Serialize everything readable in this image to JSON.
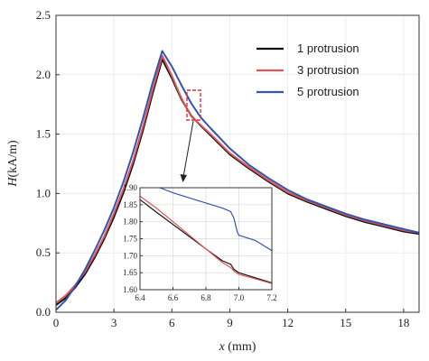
{
  "chart_data": {
    "type": "line",
    "xlabel_italic": "x",
    "xlabel_rest": " (mm)",
    "ylabel_italic": "H",
    "ylabel_rest": "(kA/m)",
    "xlim": [
      0,
      18.8
    ],
    "ylim": [
      0,
      2.5
    ],
    "xticks": [
      0,
      3,
      6,
      9,
      12,
      15,
      18
    ],
    "yticks": [
      0.0,
      0.5,
      1.0,
      1.5,
      2.0,
      2.5
    ],
    "ytick_labels": [
      "0.0",
      "0.5",
      "1.0",
      "1.5",
      "2.0",
      "2.5"
    ],
    "legend_position": "top-right",
    "series": [
      {
        "name": "1 protrusion",
        "color": "#111111",
        "x": [
          0.0,
          0.5,
          1.0,
          1.5,
          2.0,
          2.5,
          3.0,
          3.5,
          4.0,
          4.5,
          5.0,
          5.5,
          6.0,
          6.5,
          7.0,
          7.5,
          8.0,
          9.0,
          10.0,
          11.0,
          12.0,
          13.0,
          14.0,
          15.0,
          16.0,
          17.0,
          18.0,
          18.8
        ],
        "y": [
          0.06,
          0.12,
          0.21,
          0.32,
          0.46,
          0.62,
          0.8,
          1.01,
          1.25,
          1.53,
          1.84,
          2.13,
          1.97,
          1.79,
          1.655,
          1.57,
          1.49,
          1.33,
          1.21,
          1.1,
          1.0,
          0.93,
          0.87,
          0.81,
          0.76,
          0.72,
          0.68,
          0.66
        ]
      },
      {
        "name": "3 protrusion",
        "color": "#e05555",
        "x": [
          0.0,
          0.5,
          1.0,
          1.5,
          2.0,
          2.5,
          3.0,
          3.5,
          4.0,
          4.5,
          5.0,
          5.5,
          6.0,
          6.5,
          7.0,
          7.5,
          8.0,
          9.0,
          10.0,
          11.0,
          12.0,
          13.0,
          14.0,
          15.0,
          16.0,
          17.0,
          18.0,
          18.8
        ],
        "y": [
          0.08,
          0.14,
          0.23,
          0.34,
          0.48,
          0.64,
          0.83,
          1.04,
          1.28,
          1.56,
          1.87,
          2.16,
          1.99,
          1.8,
          1.65,
          1.575,
          1.5,
          1.34,
          1.22,
          1.11,
          1.01,
          0.94,
          0.88,
          0.82,
          0.77,
          0.73,
          0.69,
          0.67
        ]
      },
      {
        "name": "5 protrusion",
        "color": "#3553b0",
        "x": [
          0.0,
          0.5,
          1.0,
          1.5,
          2.0,
          2.5,
          3.0,
          3.5,
          4.0,
          4.5,
          5.0,
          5.5,
          6.0,
          6.5,
          7.0,
          7.5,
          8.0,
          9.0,
          10.0,
          11.0,
          12.0,
          13.0,
          14.0,
          15.0,
          16.0,
          17.0,
          18.0,
          18.8
        ],
        "y": [
          0.02,
          0.1,
          0.22,
          0.36,
          0.52,
          0.69,
          0.88,
          1.1,
          1.35,
          1.63,
          1.93,
          2.2,
          2.07,
          1.91,
          1.76,
          1.64,
          1.55,
          1.38,
          1.24,
          1.13,
          1.03,
          0.95,
          0.89,
          0.83,
          0.78,
          0.74,
          0.7,
          0.67
        ]
      }
    ],
    "inset": {
      "xlim": [
        6.4,
        7.2
      ],
      "ylim": [
        1.6,
        1.9
      ],
      "xticks": [
        6.4,
        6.6,
        6.8,
        7.0,
        7.2
      ],
      "xtick_labels": [
        "6.4",
        "6.6",
        "6.8",
        "7.0",
        "7.2"
      ],
      "yticks": [
        1.6,
        1.65,
        1.7,
        1.75,
        1.8,
        1.85,
        1.9
      ],
      "ytick_labels": [
        "1.60",
        "1.65",
        "1.70",
        "1.75",
        "1.80",
        "1.85",
        "1.90"
      ],
      "series": [
        {
          "name": "1 protrusion",
          "color": "#111111",
          "x": [
            6.4,
            6.5,
            6.6,
            6.7,
            6.8,
            6.9,
            6.95,
            6.97,
            7.0,
            7.1,
            7.2
          ],
          "y": [
            1.865,
            1.828,
            1.792,
            1.756,
            1.72,
            1.685,
            1.675,
            1.66,
            1.65,
            1.635,
            1.62
          ]
        },
        {
          "name": "3 protrusion",
          "color": "#e05555",
          "x": [
            6.4,
            6.5,
            6.6,
            6.7,
            6.8,
            6.9,
            6.95,
            6.97,
            7.0,
            7.1,
            7.2
          ],
          "y": [
            1.875,
            1.84,
            1.8,
            1.76,
            1.72,
            1.68,
            1.665,
            1.655,
            1.645,
            1.632,
            1.618
          ]
        },
        {
          "name": "5 protrusion",
          "color": "#3553b0",
          "x": [
            6.52,
            6.6,
            6.7,
            6.8,
            6.9,
            6.95,
            6.97,
            6.99,
            7.0,
            7.1,
            7.2
          ],
          "y": [
            1.9,
            1.885,
            1.87,
            1.855,
            1.84,
            1.83,
            1.81,
            1.77,
            1.76,
            1.745,
            1.715
          ]
        }
      ]
    }
  }
}
